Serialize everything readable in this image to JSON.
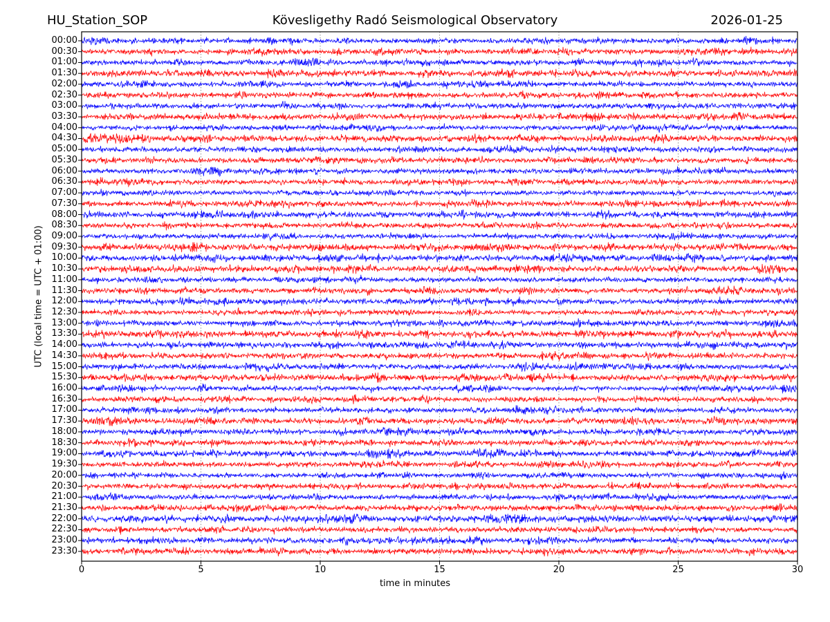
{
  "header": {
    "station": "HU_Station_SOP",
    "observatory": "Kövesligethy Radó Seismological Observatory",
    "date": "2026-01-25"
  },
  "chart_data": {
    "type": "line",
    "variant": "helicorder-daily-drum-plot",
    "title": "Kövesligethy Radó Seismological Observatory",
    "station": "HU_Station_SOP",
    "date": "2026-01-25",
    "xlabel": "time in minutes",
    "ylabel": "UTC (local time = UTC + 01:00)",
    "xlim": [
      0,
      30
    ],
    "x_ticks": [
      0,
      5,
      10,
      15,
      20,
      25,
      30
    ],
    "grid": "vertical dotted lines at 5-minute intervals",
    "legend": "none",
    "trace_style": "continuous broadband noise, no large events",
    "colors": {
      "even_rows": "#0000ff",
      "odd_rows": "#ff0000",
      "frame": "#000000",
      "grid": "#777777"
    },
    "minutes_per_row": 30,
    "rows": [
      {
        "label": "00:00",
        "color": "#0000ff",
        "amp": 1.0
      },
      {
        "label": "00:30",
        "color": "#ff0000",
        "amp": 1.0
      },
      {
        "label": "01:00",
        "color": "#0000ff",
        "amp": 1.0
      },
      {
        "label": "01:30",
        "color": "#ff0000",
        "amp": 1.2
      },
      {
        "label": "02:00",
        "color": "#0000ff",
        "amp": 0.95
      },
      {
        "label": "02:30",
        "color": "#ff0000",
        "amp": 1.0
      },
      {
        "label": "03:00",
        "color": "#0000ff",
        "amp": 1.0
      },
      {
        "label": "03:30",
        "color": "#ff0000",
        "amp": 1.15
      },
      {
        "label": "04:00",
        "color": "#0000ff",
        "amp": 0.9
      },
      {
        "label": "04:30",
        "color": "#ff0000",
        "amp": 1.2
      },
      {
        "label": "05:00",
        "color": "#0000ff",
        "amp": 1.0
      },
      {
        "label": "05:30",
        "color": "#ff0000",
        "amp": 1.0
      },
      {
        "label": "06:00",
        "color": "#0000ff",
        "amp": 1.0
      },
      {
        "label": "06:30",
        "color": "#ff0000",
        "amp": 1.0
      },
      {
        "label": "07:00",
        "color": "#0000ff",
        "amp": 0.9
      },
      {
        "label": "07:30",
        "color": "#ff0000",
        "amp": 1.0
      },
      {
        "label": "08:00",
        "color": "#0000ff",
        "amp": 1.1
      },
      {
        "label": "08:30",
        "color": "#ff0000",
        "amp": 1.0
      },
      {
        "label": "09:00",
        "color": "#0000ff",
        "amp": 0.95
      },
      {
        "label": "09:30",
        "color": "#ff0000",
        "amp": 1.25
      },
      {
        "label": "10:00",
        "color": "#0000ff",
        "amp": 1.1
      },
      {
        "label": "10:30",
        "color": "#ff0000",
        "amp": 1.2
      },
      {
        "label": "11:00",
        "color": "#0000ff",
        "amp": 0.95
      },
      {
        "label": "11:30",
        "color": "#ff0000",
        "amp": 1.05
      },
      {
        "label": "12:00",
        "color": "#0000ff",
        "amp": 1.05
      },
      {
        "label": "12:30",
        "color": "#ff0000",
        "amp": 0.95
      },
      {
        "label": "13:00",
        "color": "#0000ff",
        "amp": 1.0
      },
      {
        "label": "13:30",
        "color": "#ff0000",
        "amp": 1.2
      },
      {
        "label": "14:00",
        "color": "#0000ff",
        "amp": 1.05
      },
      {
        "label": "14:30",
        "color": "#ff0000",
        "amp": 1.0
      },
      {
        "label": "15:00",
        "color": "#0000ff",
        "amp": 1.05
      },
      {
        "label": "15:30",
        "color": "#ff0000",
        "amp": 1.15
      },
      {
        "label": "16:00",
        "color": "#0000ff",
        "amp": 0.95
      },
      {
        "label": "16:30",
        "color": "#ff0000",
        "amp": 1.0
      },
      {
        "label": "17:00",
        "color": "#0000ff",
        "amp": 1.0
      },
      {
        "label": "17:30",
        "color": "#ff0000",
        "amp": 1.1
      },
      {
        "label": "18:00",
        "color": "#0000ff",
        "amp": 1.0
      },
      {
        "label": "18:30",
        "color": "#ff0000",
        "amp": 1.0
      },
      {
        "label": "19:00",
        "color": "#0000ff",
        "amp": 1.1
      },
      {
        "label": "19:30",
        "color": "#ff0000",
        "amp": 1.0
      },
      {
        "label": "20:00",
        "color": "#0000ff",
        "amp": 0.9
      },
      {
        "label": "20:30",
        "color": "#ff0000",
        "amp": 1.0
      },
      {
        "label": "21:00",
        "color": "#0000ff",
        "amp": 1.0
      },
      {
        "label": "21:30",
        "color": "#ff0000",
        "amp": 1.05
      },
      {
        "label": "22:00",
        "color": "#0000ff",
        "amp": 1.25
      },
      {
        "label": "22:30",
        "color": "#ff0000",
        "amp": 1.0
      },
      {
        "label": "23:00",
        "color": "#0000ff",
        "amp": 1.05
      },
      {
        "label": "23:30",
        "color": "#ff0000",
        "amp": 1.1
      }
    ]
  }
}
